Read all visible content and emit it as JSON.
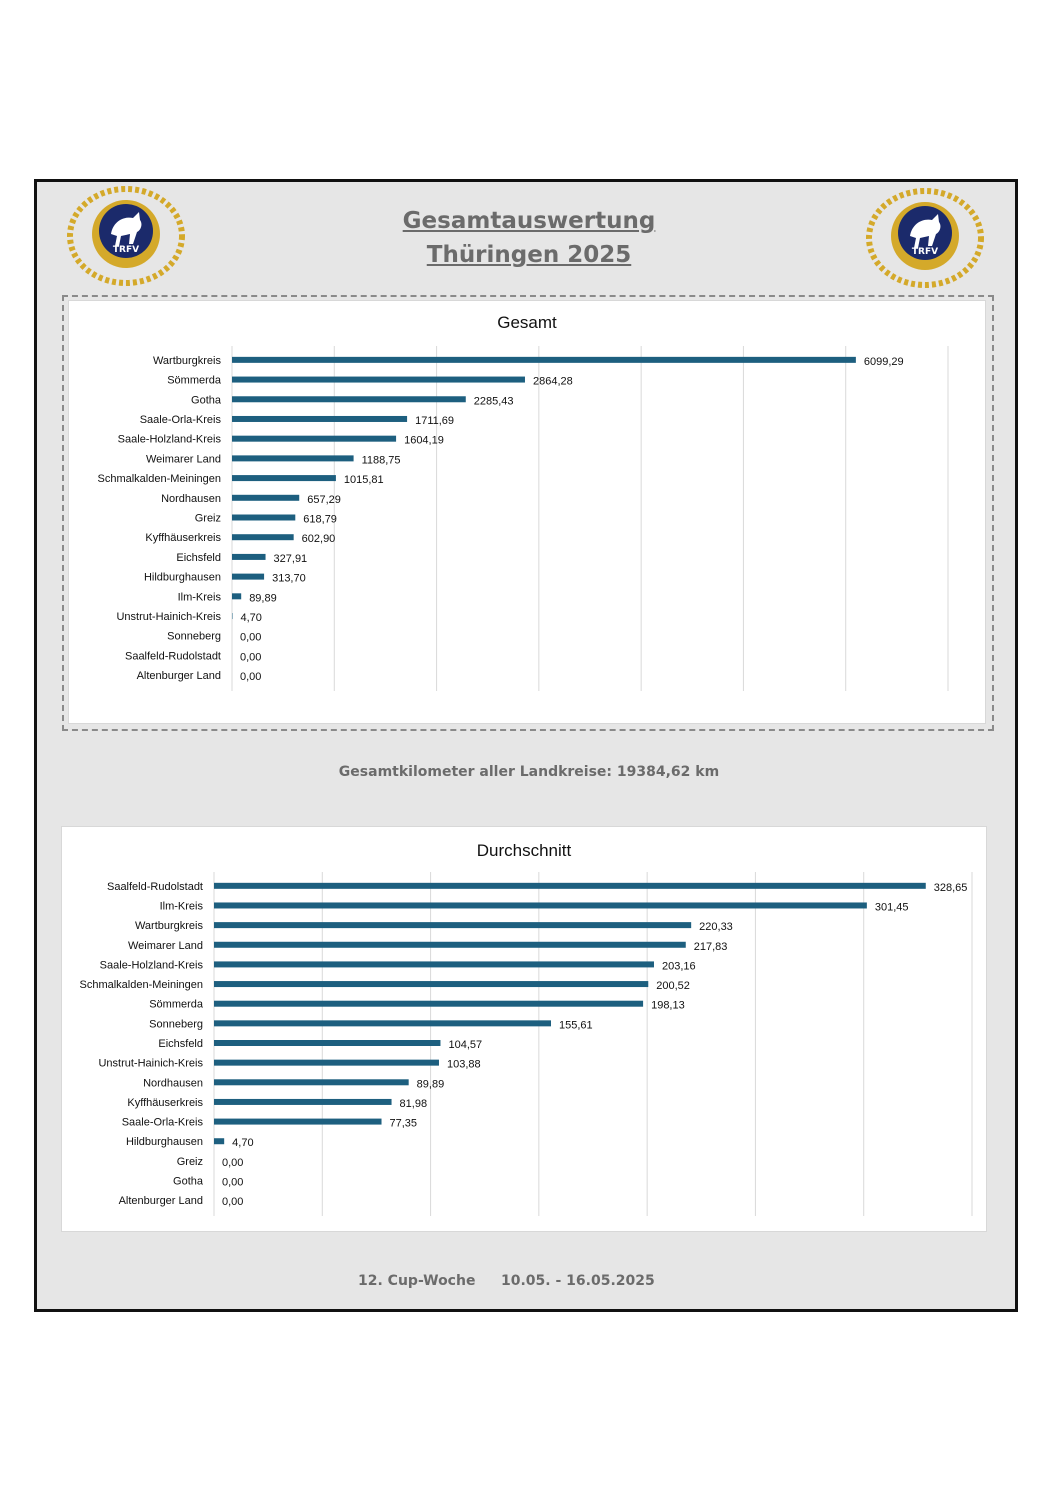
{
  "header": {
    "title_line1": "Gesamtauswertung",
    "title_line2": "Thüringen 2025"
  },
  "logo": {
    "left_text": "TRFV",
    "right_text": "TRFV",
    "colors": {
      "gold": "#d4a92a",
      "navy": "#1b2a6b"
    }
  },
  "chart_data": [
    {
      "type": "bar",
      "orientation": "horizontal",
      "title": "Gesamt",
      "categories": [
        "Wartburgkreis",
        "Sömmerda",
        "Gotha",
        "Saale-Orla-Kreis",
        "Saale-Holzland-Kreis",
        "Weimarer Land",
        "Schmalkalden-Meiningen",
        "Nordhausen",
        "Greiz",
        "Kyffhäuserkreis",
        "Eichsfeld",
        "Hildburghausen",
        "Ilm-Kreis",
        "Unstrut-Hainich-Kreis",
        "Sonneberg",
        "Saalfeld-Rudolstadt",
        "Altenburger Land"
      ],
      "values": [
        6099.29,
        2864.28,
        2285.43,
        1711.69,
        1604.19,
        1188.75,
        1015.81,
        657.29,
        618.79,
        602.9,
        327.91,
        313.7,
        89.89,
        4.7,
        0.0,
        0.0,
        0.0
      ],
      "labels": [
        "6099,29",
        "2864,28",
        "2285,43",
        "1711,69",
        "1604,19",
        "1188,75",
        "1015,81",
        "657,29",
        "618,79",
        "602,90",
        "327,91",
        "313,70",
        "89,89",
        "4,70",
        "0,00",
        "0,00",
        "0,00"
      ],
      "xlim": [
        0,
        7000
      ],
      "grid": true,
      "bar_color": "#1d5f7f"
    },
    {
      "type": "bar",
      "orientation": "horizontal",
      "title": "Durchschnitt",
      "categories": [
        "Saalfeld-Rudolstadt",
        "Ilm-Kreis",
        "Wartburgkreis",
        "Weimarer Land",
        "Saale-Holzland-Kreis",
        "Schmalkalden-Meiningen",
        "Sömmerda",
        "Sonneberg",
        "Eichsfeld",
        "Unstrut-Hainich-Kreis",
        "Nordhausen",
        "Kyffhäuserkreis",
        "Saale-Orla-Kreis",
        "Hildburghausen",
        "Greiz",
        "Gotha",
        "Altenburger Land"
      ],
      "values": [
        328.65,
        301.45,
        220.33,
        217.83,
        203.16,
        200.52,
        198.13,
        155.61,
        104.57,
        103.88,
        89.89,
        81.98,
        77.35,
        4.7,
        0.0,
        0.0,
        0.0
      ],
      "labels": [
        "328,65",
        "301,45",
        "220,33",
        "217,83",
        "203,16",
        "200,52",
        "198,13",
        "155,61",
        "104,57",
        "103,88",
        "89,89",
        "81,98",
        "77,35",
        "4,70",
        "0,00",
        "0,00",
        "0,00"
      ],
      "xlim": [
        0,
        350
      ],
      "grid": true,
      "bar_color": "#1d5f7f"
    }
  ],
  "summary": {
    "text": "Gesamtkilometer aller Landkreise: 19384,62 km"
  },
  "footer": {
    "week": "12. Cup-Woche",
    "dates": "10.05. - 16.05.2025"
  }
}
